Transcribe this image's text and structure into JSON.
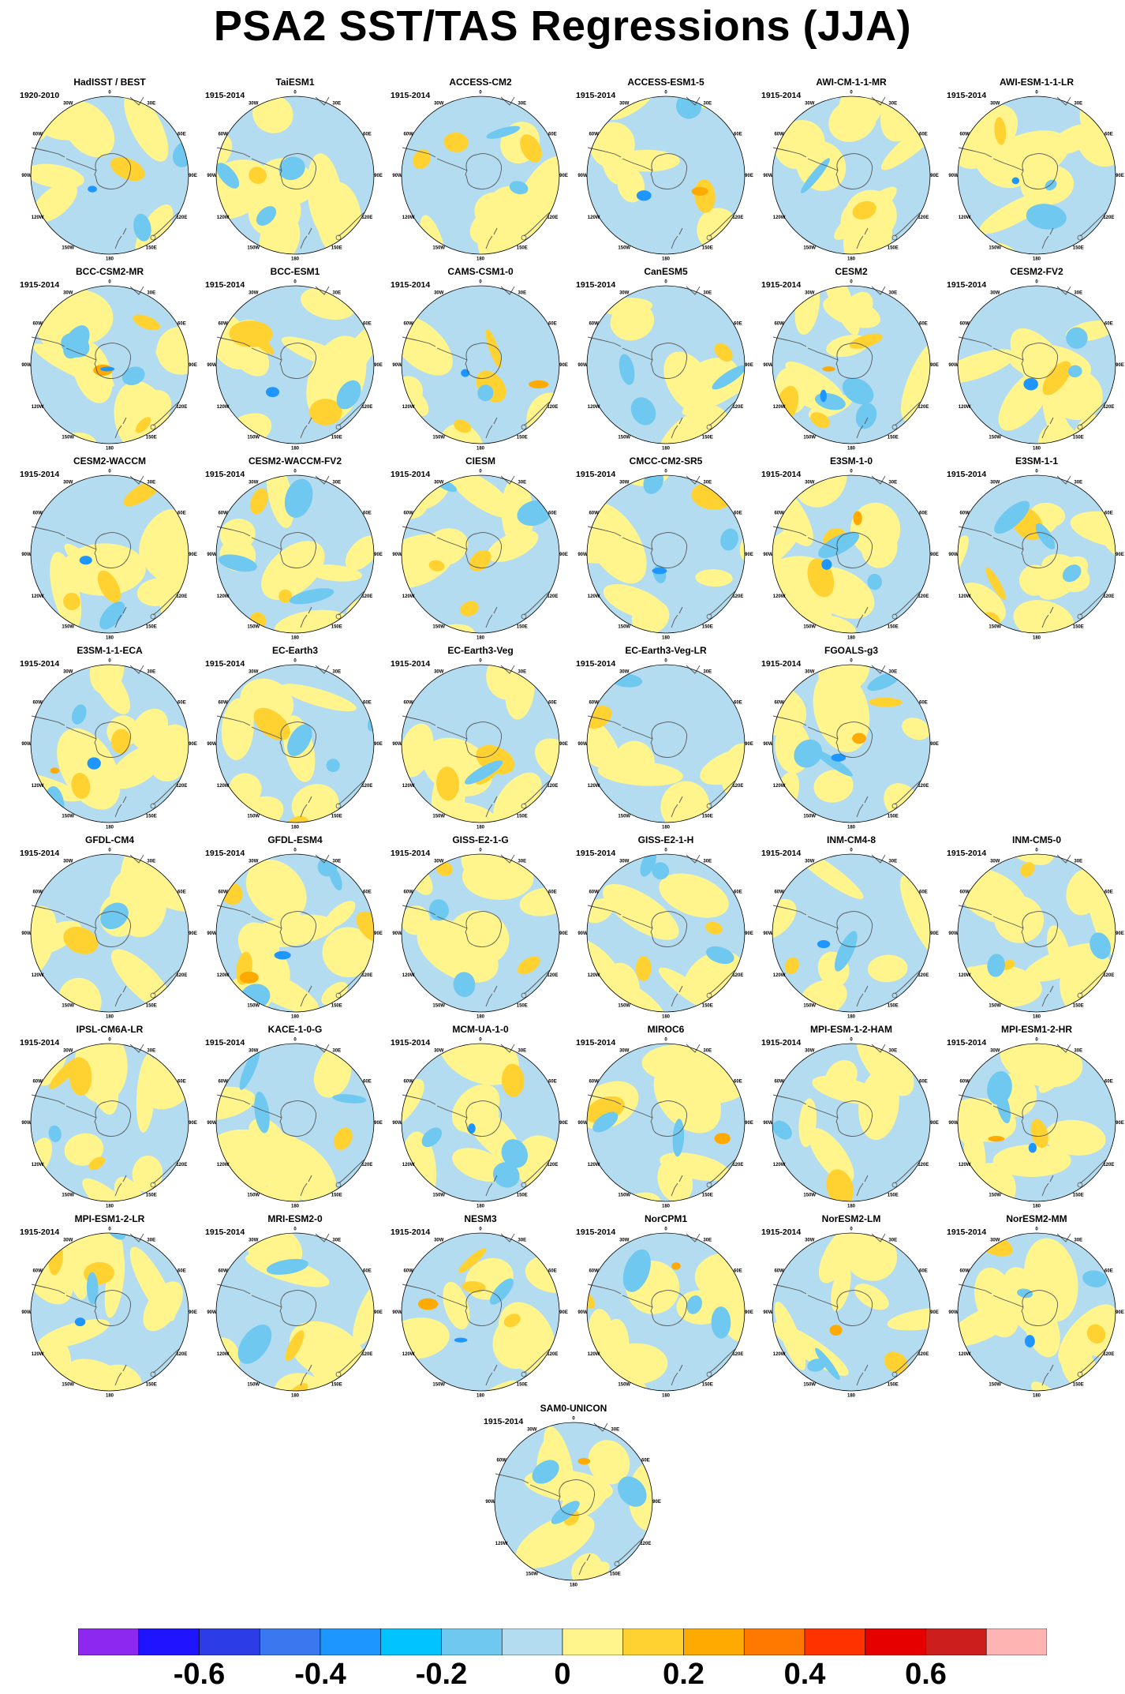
{
  "title": "PSA2 SST/TAS Regressions (JJA)",
  "panels": [
    {
      "name": "HadISST / BEST",
      "period": "1920-2010"
    },
    {
      "name": "TaiESM1",
      "period": "1915-2014"
    },
    {
      "name": "ACCESS-CM2",
      "period": "1915-2014"
    },
    {
      "name": "ACCESS-ESM1-5",
      "period": "1915-2014"
    },
    {
      "name": "AWI-CM-1-1-MR",
      "period": "1915-2014"
    },
    {
      "name": "AWI-ESM-1-1-LR",
      "period": "1915-2014"
    },
    {
      "name": "BCC-CSM2-MR",
      "period": "1915-2014"
    },
    {
      "name": "BCC-ESM1",
      "period": "1915-2014"
    },
    {
      "name": "CAMS-CSM1-0",
      "period": "1915-2014"
    },
    {
      "name": "CanESM5",
      "period": "1915-2014"
    },
    {
      "name": "CESM2",
      "period": "1915-2014"
    },
    {
      "name": "CESM2-FV2",
      "period": "1915-2014"
    },
    {
      "name": "CESM2-WACCM",
      "period": "1915-2014"
    },
    {
      "name": "CESM2-WACCM-FV2",
      "period": "1915-2014"
    },
    {
      "name": "CIESM",
      "period": "1915-2014"
    },
    {
      "name": "CMCC-CM2-SR5",
      "period": "1915-2014"
    },
    {
      "name": "E3SM-1-0",
      "period": "1915-2014"
    },
    {
      "name": "E3SM-1-1",
      "period": "1915-2014"
    },
    {
      "name": "E3SM-1-1-ECA",
      "period": "1915-2014"
    },
    {
      "name": "EC-Earth3",
      "period": "1915-2014"
    },
    {
      "name": "EC-Earth3-Veg",
      "period": "1915-2014"
    },
    {
      "name": "EC-Earth3-Veg-LR",
      "period": "1915-2014"
    },
    {
      "name": "FGOALS-g3",
      "period": "1915-2014"
    },
    {
      "name": "GFDL-CM4",
      "period": "1915-2014"
    },
    {
      "name": "GFDL-ESM4",
      "period": "1915-2014"
    },
    {
      "name": "GISS-E2-1-G",
      "period": "1915-2014"
    },
    {
      "name": "GISS-E2-1-H",
      "period": "1915-2014"
    },
    {
      "name": "INM-CM4-8",
      "period": "1915-2014"
    },
    {
      "name": "INM-CM5-0",
      "period": "1915-2014"
    },
    {
      "name": "IPSL-CM6A-LR",
      "period": "1915-2014"
    },
    {
      "name": "KACE-1-0-G",
      "period": "1915-2014"
    },
    {
      "name": "MCM-UA-1-0",
      "period": "1915-2014"
    },
    {
      "name": "MIROC6",
      "period": "1915-2014"
    },
    {
      "name": "MPI-ESM-1-2-HAM",
      "period": "1915-2014"
    },
    {
      "name": "MPI-ESM1-2-HR",
      "period": "1915-2014"
    },
    {
      "name": "MPI-ESM1-2-LR",
      "period": "1915-2014"
    },
    {
      "name": "MRI-ESM2-0",
      "period": "1915-2014"
    },
    {
      "name": "NESM3",
      "period": "1915-2014"
    },
    {
      "name": "NorCPM1",
      "period": "1915-2014"
    },
    {
      "name": "NorESM2-LM",
      "period": "1915-2014"
    },
    {
      "name": "NorESM2-MM",
      "period": "1915-2014"
    },
    {
      "name": "SAM0-UNICON",
      "period": "1915-2014"
    }
  ],
  "lon_labels": [
    "0",
    "30E",
    "60E",
    "90E",
    "120E",
    "150E",
    "180",
    "150W",
    "120W",
    "90W",
    "60W",
    "30W"
  ],
  "colorbar": {
    "colors": [
      "#8c28f0",
      "#1e14ff",
      "#2c3ce6",
      "#3a78f0",
      "#1e96ff",
      "#00c3ff",
      "#6ec8f0",
      "#b4dcf0",
      "#fff58c",
      "#ffd232",
      "#ffaa00",
      "#ff7800",
      "#ff3200",
      "#e60000",
      "#cd1e1e",
      "#ffb4b4"
    ],
    "tick_labels": [
      "-0.6",
      "-0.4",
      "-0.2",
      "0",
      "0.2",
      "0.4",
      "0.6"
    ]
  }
}
